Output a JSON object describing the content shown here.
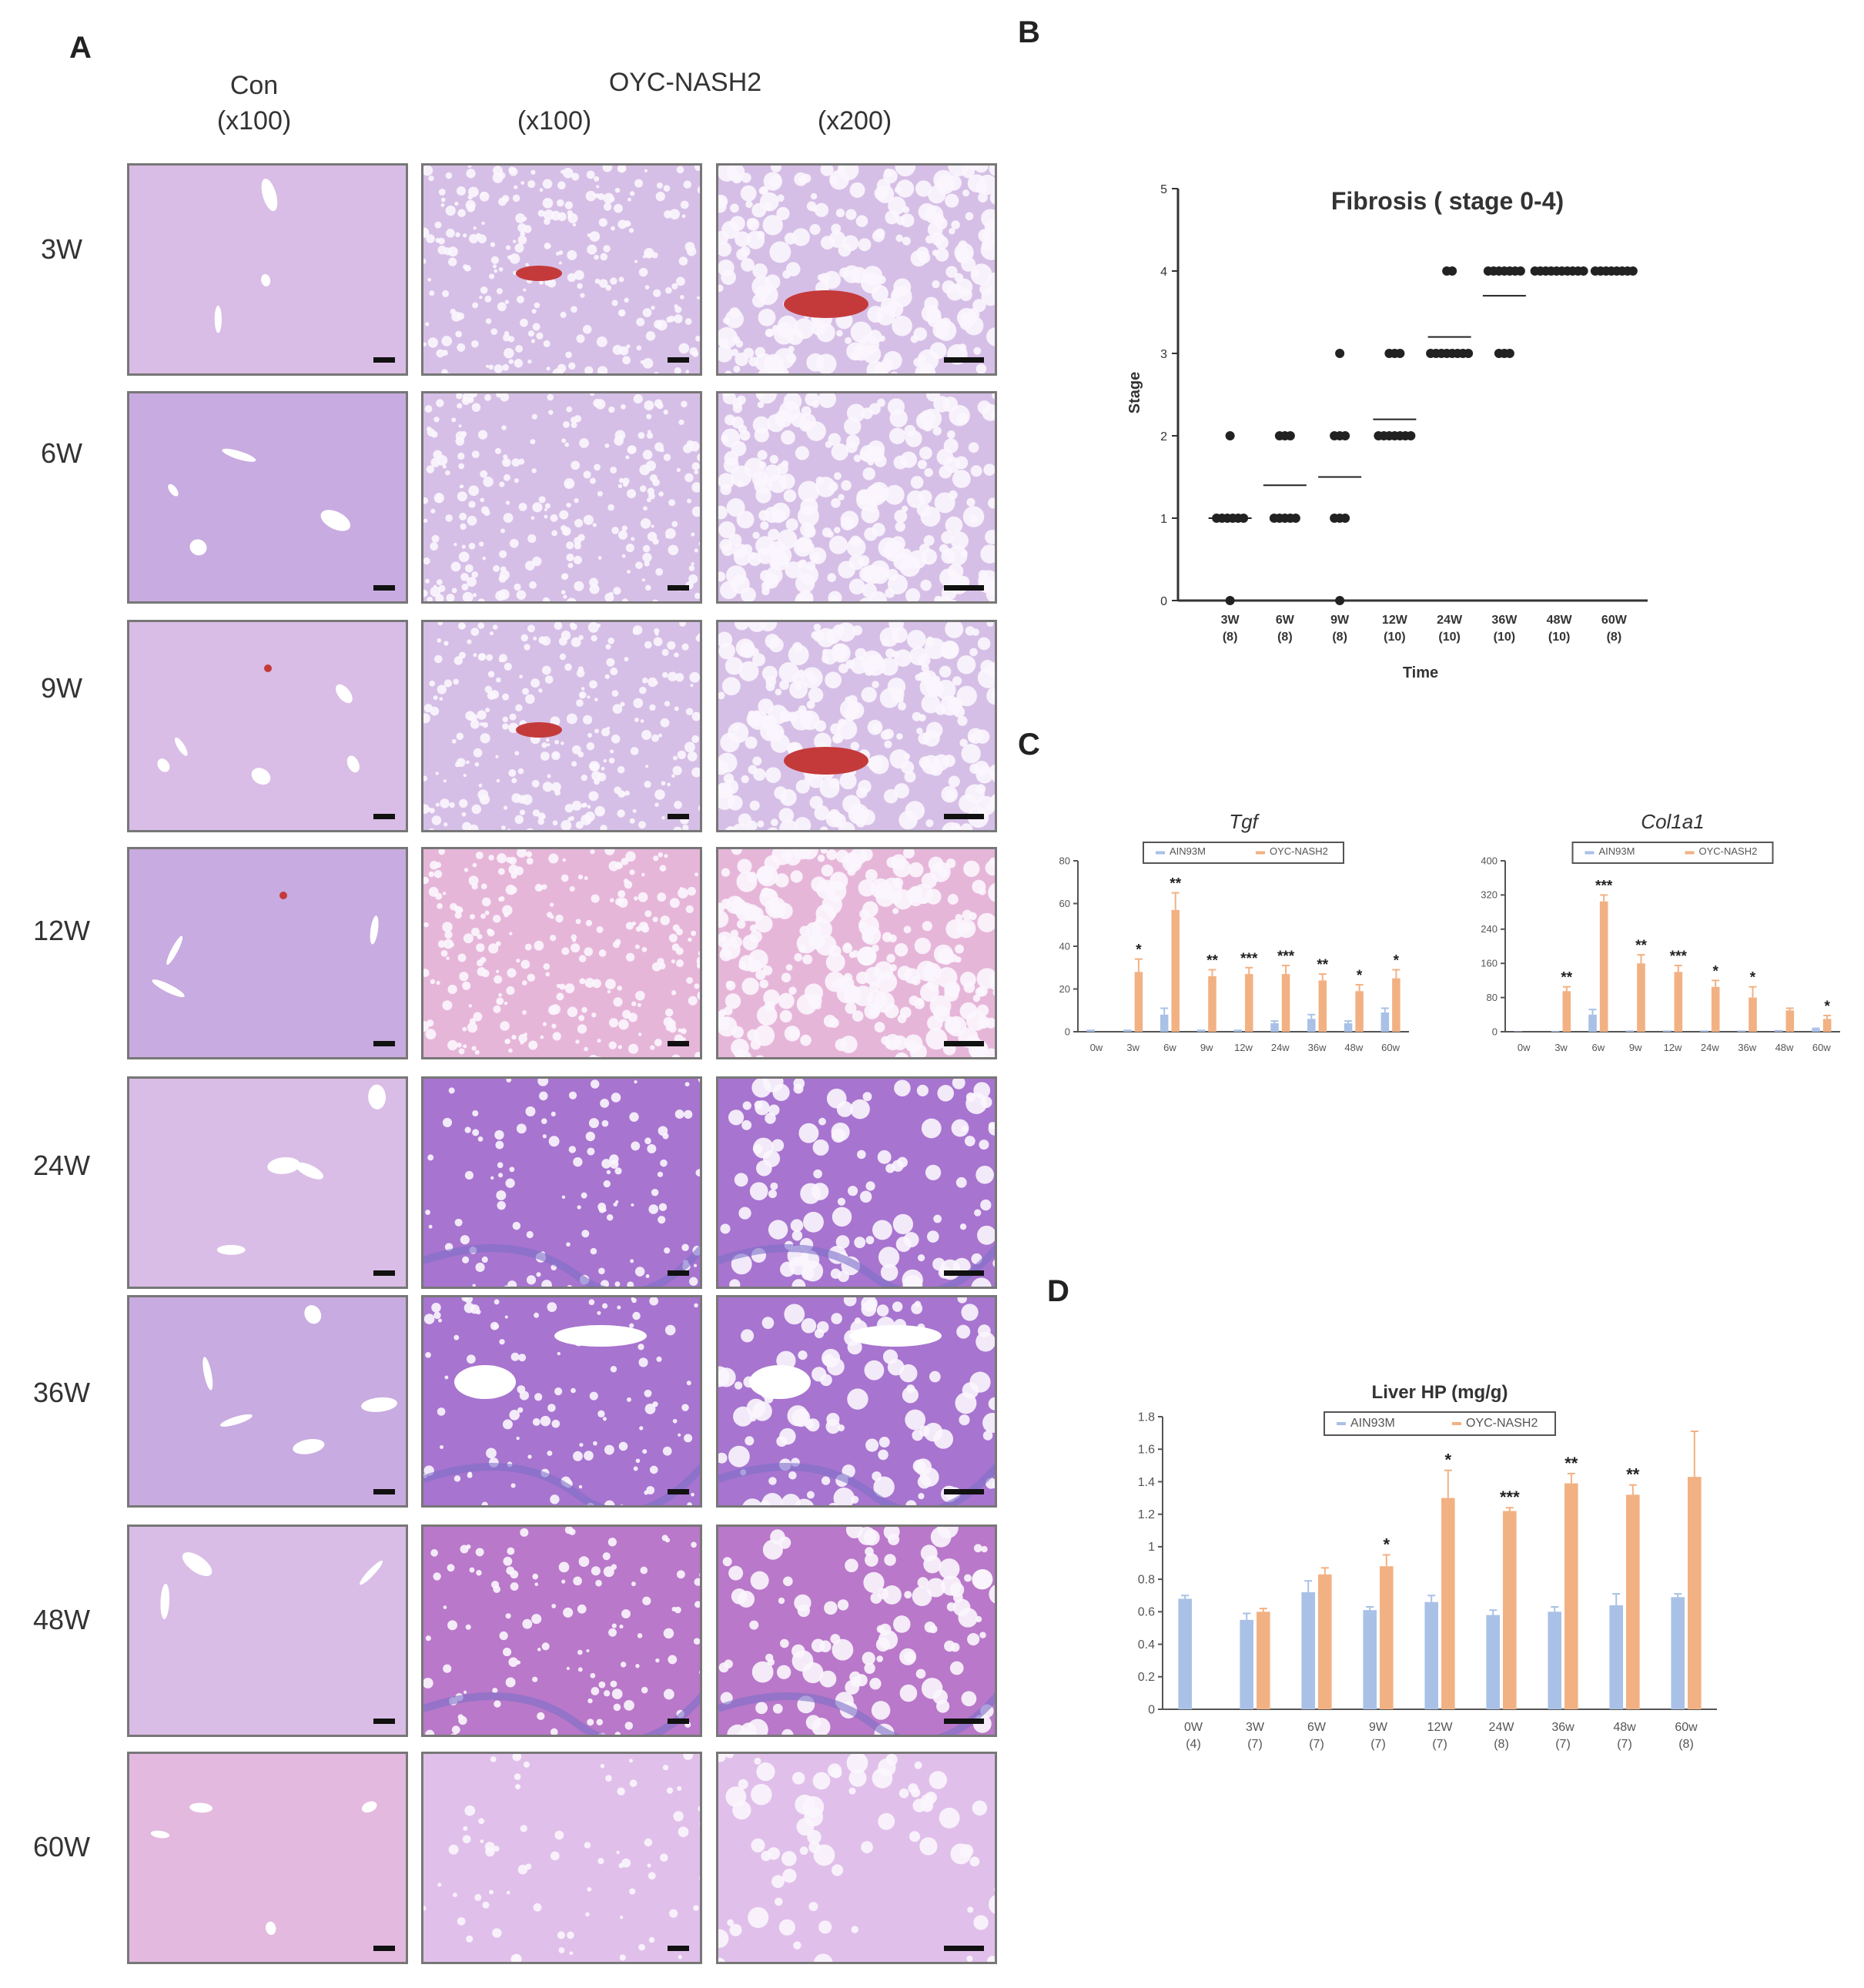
{
  "panelA": {
    "letter": "A",
    "col_con": "Con",
    "col_con_mag": "(x100)",
    "col_oyc": "OYC-NASH2",
    "col_oyc_mag1": "(x100)",
    "col_oyc_mag2": "(x200)",
    "rows": [
      "3W",
      "6W",
      "9W",
      "12W",
      "24W",
      "36W",
      "48W",
      "60W"
    ]
  },
  "panelB": {
    "letter": "B",
    "chart_data": {
      "type": "scatter",
      "title": "Fibrosis ( stage 0-4)",
      "xlabel": "Time",
      "ylabel": "Stage",
      "ylim": [
        0,
        5
      ],
      "yticks": [
        "0",
        "1",
        "2",
        "3",
        "4",
        "5"
      ],
      "categories": [
        "3W",
        "6W",
        "9W",
        "12W",
        "24W",
        "36W",
        "48W",
        "60W"
      ],
      "n_labels": [
        "(8)",
        "(8)",
        "(8)",
        "(10)",
        "(10)",
        "(10)",
        "(10)",
        "(8)"
      ],
      "points": [
        [
          0,
          1,
          1,
          1,
          1,
          1,
          1,
          2
        ],
        [
          1,
          1,
          1,
          1,
          1,
          2,
          2,
          2
        ],
        [
          0,
          1,
          1,
          1,
          2,
          2,
          2,
          3
        ],
        [
          2,
          2,
          2,
          2,
          2,
          2,
          2,
          3,
          3,
          3
        ],
        [
          3,
          3,
          3,
          3,
          3,
          3,
          3,
          3,
          4,
          4
        ],
        [
          3,
          3,
          3,
          4,
          4,
          4,
          4,
          4,
          4,
          4
        ],
        [
          4,
          4,
          4,
          4,
          4,
          4,
          4,
          4,
          4,
          4
        ],
        [
          4,
          4,
          4,
          4,
          4,
          4,
          4,
          4
        ]
      ],
      "means": [
        1,
        1.4,
        1.5,
        2.2,
        3.2,
        3.7,
        4,
        4
      ]
    }
  },
  "panelC": {
    "letter": "C",
    "charts": [
      {
        "type": "bar",
        "title": "Tgf",
        "legend": [
          "AIN93M",
          "OYC-NASH2"
        ],
        "categories": [
          "0w",
          "3w",
          "6w",
          "9w",
          "12w",
          "24w",
          "36w",
          "48w",
          "60w"
        ],
        "ylim": [
          0,
          80
        ],
        "yticks": [
          "0",
          "20",
          "40",
          "60",
          "80"
        ],
        "series": [
          {
            "name": "AIN93M",
            "values": [
              1,
              1,
              8,
              1,
              1,
              4,
              6,
              4,
              9
            ],
            "errors": [
              0,
              0,
              3,
              0,
              0,
              1,
              2,
              1,
              2
            ]
          },
          {
            "name": "OYC-NASH2",
            "values": [
              0,
              28,
              57,
              26,
              27,
              27,
              24,
              19,
              25
            ],
            "errors": [
              0,
              6,
              8,
              3,
              3,
              4,
              3,
              3,
              4
            ]
          }
        ],
        "significance": [
          "",
          "*",
          "**",
          "**",
          "***",
          "***",
          "**",
          "*",
          "*"
        ]
      },
      {
        "type": "bar",
        "title": "Col1a1",
        "legend": [
          "AIN93M",
          "OYC-NASH2"
        ],
        "categories": [
          "0w",
          "3w",
          "6w",
          "9w",
          "12w",
          "24w",
          "36w",
          "48w",
          "60w"
        ],
        "ylim": [
          0,
          400
        ],
        "yticks": [
          "0",
          "80",
          "160",
          "240",
          "320",
          "400"
        ],
        "series": [
          {
            "name": "AIN93M",
            "values": [
              1,
              2,
              40,
              3,
              3,
              3,
              3,
              4,
              6
            ],
            "errors": [
              0,
              0,
              12,
              0,
              0,
              0,
              0,
              0,
              2
            ]
          },
          {
            "name": "OYC-NASH2",
            "values": [
              0,
              95,
              305,
              160,
              140,
              105,
              80,
              50,
              30
            ],
            "errors": [
              0,
              10,
              15,
              20,
              15,
              15,
              25,
              5,
              8
            ]
          }
        ],
        "significance": [
          "",
          "**",
          "***",
          "**",
          "***",
          "*",
          "*",
          "",
          "*"
        ]
      }
    ]
  },
  "panelD": {
    "letter": "D",
    "chart_data": {
      "type": "bar",
      "title": "Liver HP (mg/g)",
      "legend": [
        "AIN93M",
        "OYC-NASH2"
      ],
      "categories": [
        "0W",
        "3W",
        "6W",
        "9W",
        "12W",
        "24W",
        "36w",
        "48w",
        "60w"
      ],
      "n_labels": [
        "(4)",
        "(7)",
        "(7)",
        "(7)",
        "(7)",
        "(8)",
        "(7)",
        "(7)",
        "(8)"
      ],
      "ylim": [
        0,
        1.8
      ],
      "yticks": [
        "0",
        "0.2",
        "0.4",
        "0.6",
        "0.8",
        "1",
        "1.2",
        "1.4",
        "1.6",
        "1.8"
      ],
      "series": [
        {
          "name": "AIN93M",
          "values": [
            0.68,
            0.55,
            0.72,
            0.61,
            0.66,
            0.58,
            0.6,
            0.64,
            0.69
          ],
          "errors": [
            0.02,
            0.04,
            0.07,
            0.02,
            0.04,
            0.03,
            0.03,
            0.07,
            0.02
          ]
        },
        {
          "name": "OYC-NASH2",
          "values": [
            null,
            0.6,
            0.83,
            0.88,
            1.3,
            1.22,
            1.39,
            1.32,
            1.43
          ],
          "errors": [
            0,
            0.02,
            0.04,
            0.07,
            0.17,
            0.02,
            0.06,
            0.06,
            0.28
          ]
        }
      ],
      "significance": [
        "",
        "",
        "",
        "*",
        "*",
        "***",
        "**",
        "**",
        ""
      ]
    }
  },
  "colors": {
    "control_bar": "#a9c1e6",
    "nash_bar": "#f2b183",
    "he_pink": "#e2bce3",
    "mt_purple": "#b77ed0",
    "mt_blue": "#7b6fc8",
    "vessel_red": "#c43a3a"
  }
}
